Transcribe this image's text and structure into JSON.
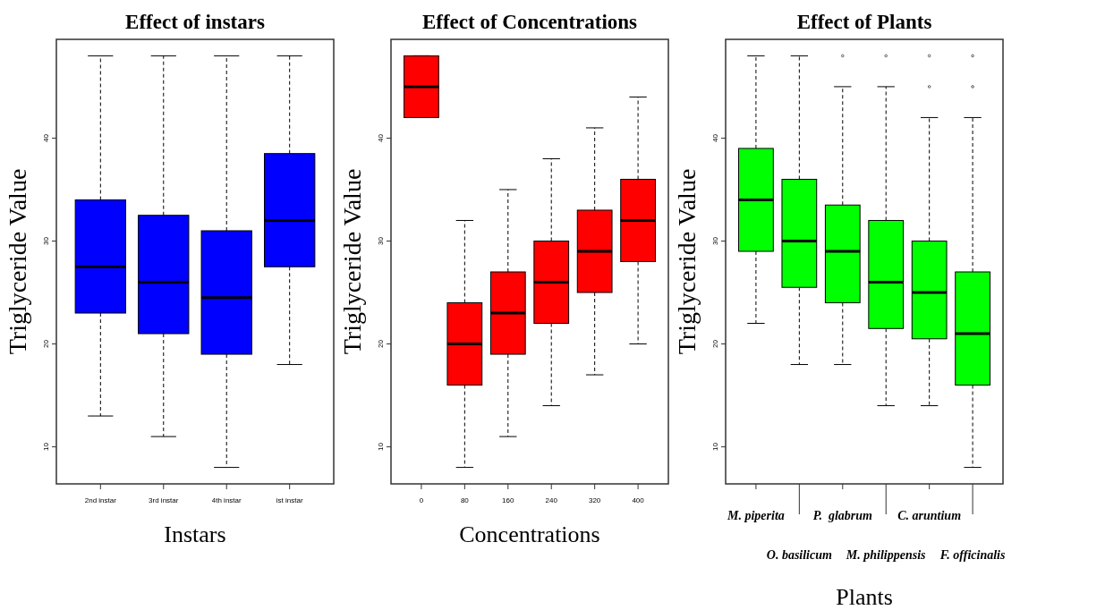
{
  "chart_data": [
    {
      "type": "box",
      "title": "Effect of instars",
      "xlabel": "Instars",
      "ylabel": "Triglyceride Value",
      "color": "#0000ff",
      "categories": [
        "2nd instar",
        "3rd instar",
        "4th instar",
        "ist instar"
      ],
      "ylim": [
        6.4,
        49.6
      ],
      "yticks": [
        10,
        20,
        30,
        40
      ],
      "boxes": [
        {
          "low": 13,
          "q1": 23,
          "median": 27.5,
          "q3": 34,
          "high": 48
        },
        {
          "low": 11,
          "q1": 21,
          "median": 26,
          "q3": 32.5,
          "high": 48
        },
        {
          "low": 8,
          "q1": 19,
          "median": 24.5,
          "q3": 31,
          "high": 48
        },
        {
          "low": 18,
          "q1": 27.5,
          "median": 32,
          "q3": 38.5,
          "high": 48
        }
      ]
    },
    {
      "type": "box",
      "title": "Effect of Concentrations",
      "xlabel": "Concentrations",
      "ylabel": "Triglyceride Value",
      "color": "#ff0000",
      "categories": [
        "0",
        "80",
        "160",
        "240",
        "320",
        "400"
      ],
      "ylim": [
        6.4,
        49.6
      ],
      "yticks": [
        10,
        20,
        30,
        40
      ],
      "boxes": [
        {
          "low": 42,
          "q1": 42,
          "median": 45,
          "q3": 48,
          "high": 48
        },
        {
          "low": 8,
          "q1": 16,
          "median": 20,
          "q3": 24,
          "high": 32
        },
        {
          "low": 11,
          "q1": 19,
          "median": 23,
          "q3": 27,
          "high": 35
        },
        {
          "low": 14,
          "q1": 22,
          "median": 26,
          "q3": 30,
          "high": 38
        },
        {
          "low": 17,
          "q1": 25,
          "median": 29,
          "q3": 33,
          "high": 41
        },
        {
          "low": 20,
          "q1": 28,
          "median": 32,
          "q3": 36,
          "high": 44
        }
      ]
    },
    {
      "type": "box",
      "title": "Effect of Plants",
      "xlabel": "Plants",
      "ylabel": "Triglyceride Value",
      "color": "#00ff00",
      "categories": [
        "M. piperita",
        "O. basilicum",
        "P.  glabrum",
        "M. philippensis",
        "C. aruntium",
        "F. officinalis"
      ],
      "ylim": [
        6.4,
        49.6
      ],
      "yticks": [
        10,
        20,
        30,
        40
      ],
      "boxes": [
        {
          "low": 22,
          "q1": 29,
          "median": 34,
          "q3": 39,
          "high": 48
        },
        {
          "low": 18,
          "q1": 25.5,
          "median": 30,
          "q3": 36,
          "high": 48
        },
        {
          "low": 18,
          "q1": 24,
          "median": 29,
          "q3": 33.5,
          "high": 45,
          "outliers": [
            48
          ]
        },
        {
          "low": 14,
          "q1": 21.5,
          "median": 26,
          "q3": 32,
          "high": 45,
          "outliers": [
            48
          ]
        },
        {
          "low": 14,
          "q1": 20.5,
          "median": 25,
          "q3": 30,
          "high": 42,
          "outliers": [
            48,
            45
          ]
        },
        {
          "low": 8,
          "q1": 16,
          "median": 21,
          "q3": 27,
          "high": 42,
          "outliers": [
            48,
            45
          ]
        }
      ]
    }
  ]
}
